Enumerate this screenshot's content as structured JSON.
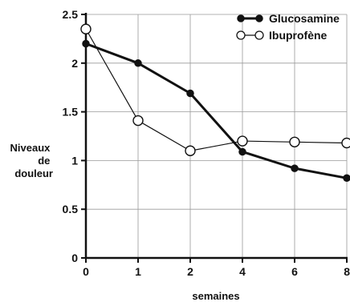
{
  "chart_data": {
    "type": "line",
    "x_categories": [
      "0",
      "1",
      "2",
      "4",
      "6",
      "8"
    ],
    "xlabel": "semaines",
    "ylabel_lines": [
      "Niveaux",
      "de",
      "douleur"
    ],
    "ylim": [
      0,
      2.5
    ],
    "yticks": [
      "0",
      "0.5",
      "1",
      "1.5",
      "2",
      "2.5"
    ],
    "grid": true,
    "legend_position": "top-right",
    "series": [
      {
        "name": "Glucosamine",
        "marker": "filled-circle",
        "line_weight": "thick",
        "values": [
          2.2,
          2.0,
          1.69,
          1.09,
          0.92,
          0.82
        ]
      },
      {
        "name": "Ibuprofène",
        "marker": "open-circle",
        "line_weight": "thin",
        "values": [
          2.35,
          1.41,
          1.1,
          1.2,
          1.19,
          1.18
        ]
      }
    ]
  }
}
